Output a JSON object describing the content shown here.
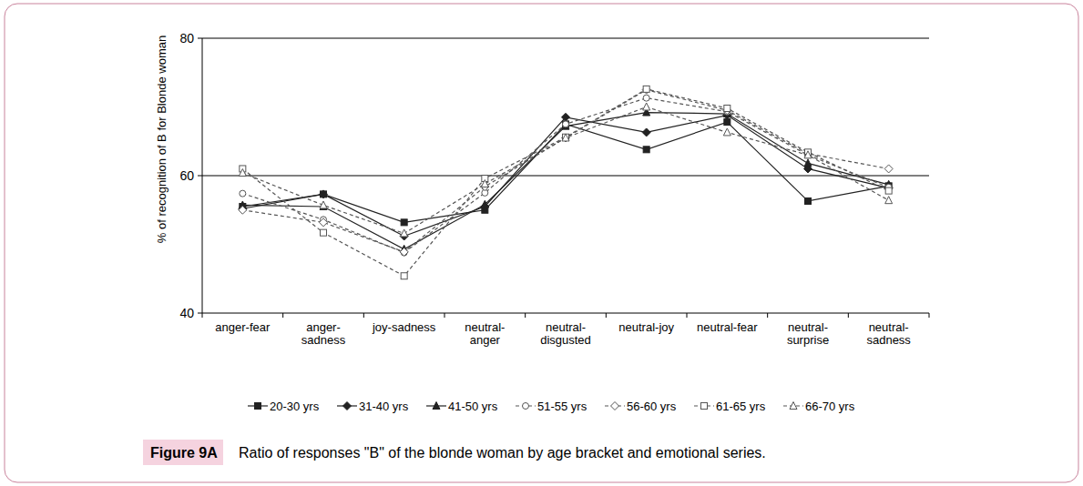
{
  "chart_data": {
    "type": "line",
    "title": "Figure 9A",
    "subtitle": "Ratio of responses \"B\" of the blonde woman by age bracket and emotional series.",
    "y_label": "% of recognition of B for Blonde woman",
    "categories": [
      "anger-fear",
      "anger-sadness",
      "joy-sadness",
      "neutral-anger",
      "neutral-disgusted",
      "neutral-joy",
      "neutral-fear",
      "neutral-surprise",
      "neutral-sadness"
    ],
    "ylim": [
      40,
      80
    ],
    "yticks": [
      40,
      60,
      80
    ],
    "grid": true,
    "legend": "bottom",
    "series": [
      {
        "name": "20-30 yrs",
        "color": "#222222",
        "marker": "square",
        "line_style": "solid",
        "values": [
          55.5,
          57.3,
          53.2,
          55.0,
          67.5,
          63.8,
          67.8,
          56.3,
          58.5
        ]
      },
      {
        "name": "31-40 yrs",
        "color": "#222222",
        "marker": "diamond",
        "line_style": "solid",
        "values": [
          55.2,
          57.3,
          51.2,
          55.5,
          68.5,
          66.3,
          68.8,
          61.0,
          58.2
        ]
      },
      {
        "name": "41-50 yrs",
        "color": "#222222",
        "marker": "triangle",
        "line_style": "solid",
        "values": [
          55.7,
          55.5,
          49.3,
          55.8,
          67.2,
          69.2,
          69.0,
          61.8,
          58.7
        ]
      },
      {
        "name": "51-55 yrs",
        "color": "#555555",
        "marker": "circle",
        "line_style": "dashed",
        "values": [
          57.4,
          53.6,
          48.8,
          57.5,
          67.5,
          71.3,
          69.3,
          63.0,
          58.3
        ]
      },
      {
        "name": "56-60 yrs",
        "color": "#555555",
        "marker": "diamond",
        "line_style": "dashed",
        "values": [
          55.0,
          53.2,
          48.9,
          58.4,
          65.5,
          72.5,
          69.5,
          63.2,
          61.0
        ]
      },
      {
        "name": "61-65 yrs",
        "color": "#555555",
        "marker": "square",
        "line_style": "dashed",
        "values": [
          61.0,
          51.7,
          45.4,
          59.6,
          65.6,
          72.6,
          69.8,
          63.4,
          57.8
        ]
      },
      {
        "name": "66-70 yrs",
        "color": "#555555",
        "marker": "triangle",
        "line_style": "dashed",
        "values": [
          60.4,
          55.7,
          51.6,
          58.8,
          65.5,
          70.0,
          66.3,
          63.0,
          56.4
        ]
      }
    ]
  }
}
